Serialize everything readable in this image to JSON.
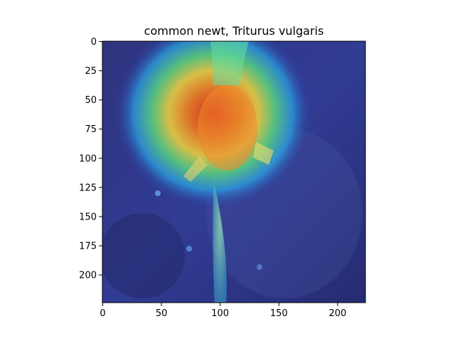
{
  "figure": {
    "title": "common newt, Triturus vulgaris"
  },
  "image_panel": {
    "content": "Heatmap overlay on a photo of a newt seen from above, over a dark blue background",
    "overlay_colormap": "jet",
    "hotspot_color": "#e8401c",
    "background_color": "#2a2f78"
  },
  "axes": {
    "x_ticks": [
      "0",
      "50",
      "100",
      "150",
      "200"
    ],
    "y_ticks": [
      "0",
      "25",
      "50",
      "75",
      "100",
      "125",
      "150",
      "175",
      "200"
    ],
    "x_range": [
      0,
      224
    ],
    "y_range": [
      0,
      224
    ]
  }
}
